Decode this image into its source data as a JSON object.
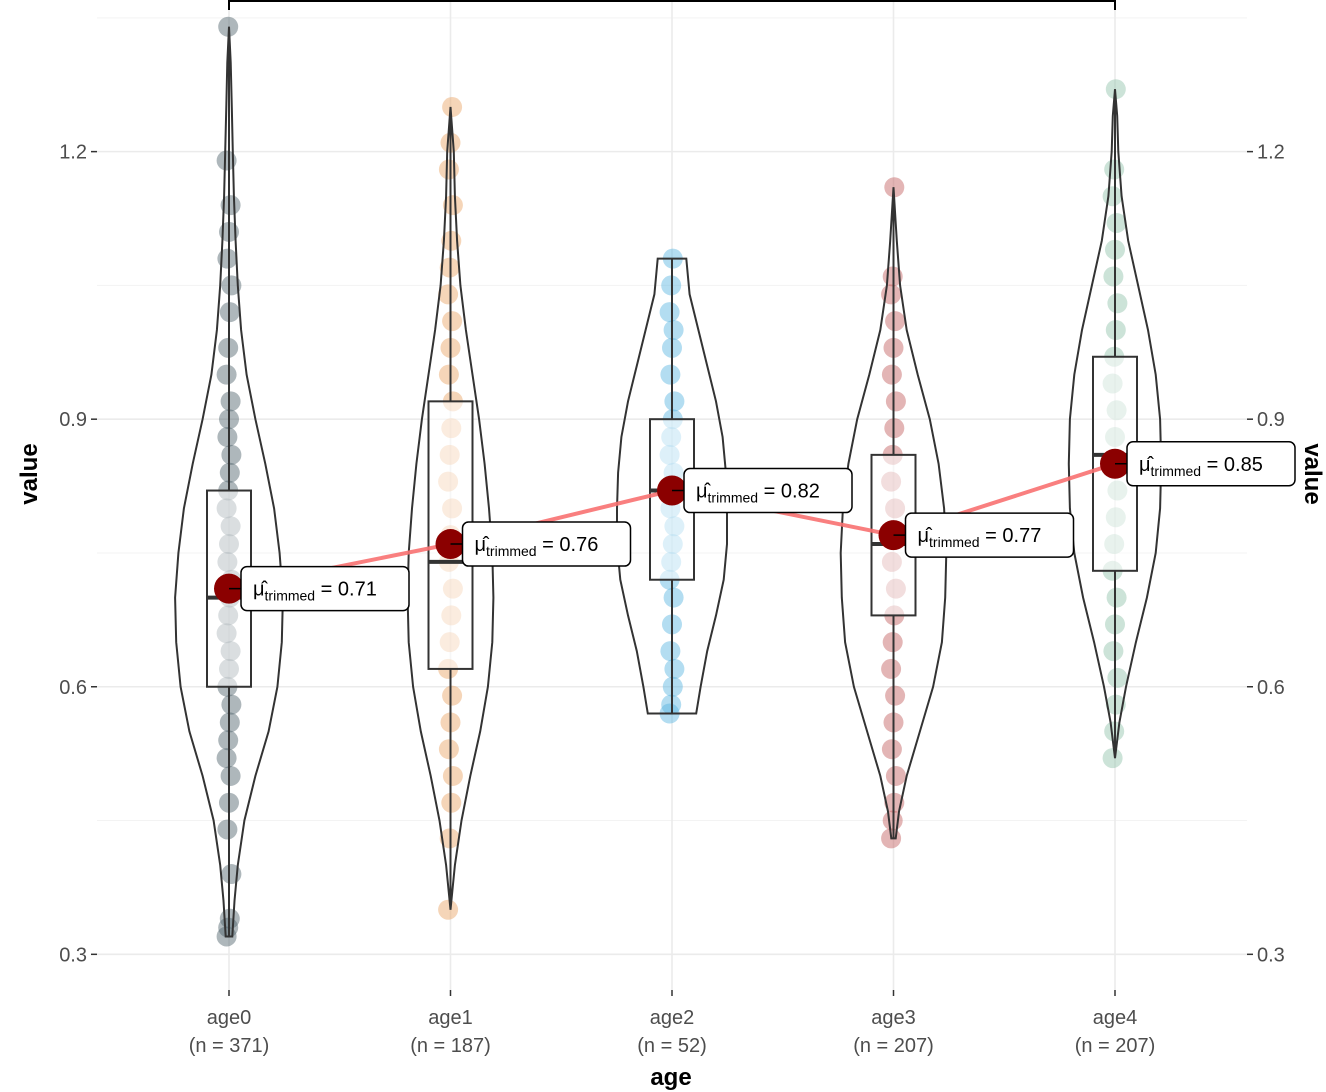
{
  "chart_data": {
    "type": "violin-box",
    "xlabel": "age",
    "ylabel": "value",
    "ylabel_right": "value",
    "ylim": [
      0.26,
      1.37
    ],
    "yticks": [
      0.3,
      0.6,
      0.9,
      1.2
    ],
    "ytick_labels": [
      "0.3",
      "0.6",
      "0.9",
      "1.2"
    ],
    "grid": true,
    "legend": "none",
    "mean_label_prefix": "μ̂",
    "mean_label_subscript": "trimmed",
    "significance_bracket": {
      "from": "age0",
      "to": "age4",
      "label": ""
    },
    "mean_line_color": "#f87171",
    "mean_point_color": "#8b0000",
    "groups": [
      {
        "name": "age0",
        "n_label": "(n = 371)",
        "color": "#4b5f69",
        "min": 0.32,
        "q1": 0.6,
        "median": 0.7,
        "q3": 0.82,
        "max": 1.34,
        "trimmed_mean": 0.71,
        "mean_label": "0.71",
        "density_y": [
          0.32,
          0.36,
          0.4,
          0.45,
          0.5,
          0.55,
          0.6,
          0.65,
          0.7,
          0.75,
          0.8,
          0.85,
          0.9,
          0.95,
          1.0,
          1.05,
          1.1,
          1.15,
          1.2,
          1.25,
          1.3,
          1.34
        ],
        "density_w": [
          0.03,
          0.05,
          0.08,
          0.14,
          0.24,
          0.36,
          0.44,
          0.48,
          0.49,
          0.46,
          0.41,
          0.33,
          0.24,
          0.16,
          0.11,
          0.08,
          0.06,
          0.045,
          0.035,
          0.025,
          0.015,
          0.0
        ],
        "points": [
          0.32,
          0.33,
          0.34,
          0.39,
          0.44,
          0.47,
          0.5,
          0.52,
          0.54,
          0.56,
          0.58,
          0.6,
          0.62,
          0.64,
          0.66,
          0.68,
          0.7,
          0.72,
          0.74,
          0.76,
          0.78,
          0.8,
          0.82,
          0.84,
          0.86,
          0.88,
          0.9,
          0.92,
          0.95,
          0.98,
          1.02,
          1.05,
          1.08,
          1.11,
          1.14,
          1.19,
          1.34
        ]
      },
      {
        "name": "age1",
        "n_label": "(n = 187)",
        "color": "#e8a261",
        "min": 0.35,
        "q1": 0.62,
        "median": 0.74,
        "q3": 0.92,
        "max": 1.25,
        "trimmed_mean": 0.76,
        "mean_label": "0.76",
        "density_y": [
          0.35,
          0.4,
          0.45,
          0.5,
          0.55,
          0.6,
          0.65,
          0.7,
          0.75,
          0.8,
          0.85,
          0.9,
          0.95,
          1.0,
          1.05,
          1.1,
          1.15,
          1.2,
          1.25
        ],
        "density_w": [
          0.0,
          0.04,
          0.1,
          0.18,
          0.27,
          0.34,
          0.38,
          0.39,
          0.38,
          0.35,
          0.31,
          0.26,
          0.2,
          0.14,
          0.09,
          0.06,
          0.04,
          0.03,
          0.0
        ],
        "points": [
          0.35,
          0.43,
          0.47,
          0.5,
          0.53,
          0.56,
          0.59,
          0.62,
          0.65,
          0.68,
          0.71,
          0.74,
          0.77,
          0.8,
          0.83,
          0.86,
          0.89,
          0.92,
          0.95,
          0.98,
          1.01,
          1.04,
          1.07,
          1.1,
          1.14,
          1.18,
          1.21,
          1.25
        ]
      },
      {
        "name": "age2",
        "n_label": "(n = 52)",
        "color": "#56b4e0",
        "min": 0.57,
        "q1": 0.72,
        "median": 0.82,
        "q3": 0.9,
        "max": 1.08,
        "trimmed_mean": 0.82,
        "mean_label": "0.82",
        "density_y": [
          0.57,
          0.6,
          0.64,
          0.68,
          0.72,
          0.76,
          0.8,
          0.84,
          0.88,
          0.92,
          0.96,
          1.0,
          1.04,
          1.08
        ],
        "density_w": [
          0.22,
          0.26,
          0.32,
          0.4,
          0.47,
          0.5,
          0.5,
          0.49,
          0.46,
          0.4,
          0.32,
          0.24,
          0.16,
          0.13
        ],
        "points": [
          0.57,
          0.58,
          0.6,
          0.62,
          0.64,
          0.67,
          0.7,
          0.72,
          0.74,
          0.76,
          0.78,
          0.8,
          0.82,
          0.84,
          0.86,
          0.88,
          0.9,
          0.92,
          0.95,
          0.98,
          1.0,
          1.02,
          1.05,
          1.08
        ]
      },
      {
        "name": "age3",
        "n_label": "(n = 207)",
        "color": "#c25b5b",
        "min": 0.43,
        "q1": 0.68,
        "median": 0.76,
        "q3": 0.86,
        "max": 1.16,
        "trimmed_mean": 0.77,
        "mean_label": "0.77",
        "density_y": [
          0.43,
          0.46,
          0.5,
          0.55,
          0.6,
          0.65,
          0.7,
          0.75,
          0.8,
          0.85,
          0.9,
          0.95,
          1.0,
          1.05,
          1.1,
          1.16
        ],
        "density_w": [
          0.02,
          0.05,
          0.12,
          0.24,
          0.36,
          0.44,
          0.47,
          0.48,
          0.46,
          0.41,
          0.33,
          0.22,
          0.12,
          0.06,
          0.03,
          0.0
        ],
        "points": [
          0.43,
          0.45,
          0.47,
          0.5,
          0.53,
          0.56,
          0.59,
          0.62,
          0.65,
          0.68,
          0.71,
          0.74,
          0.77,
          0.8,
          0.83,
          0.86,
          0.89,
          0.92,
          0.95,
          0.98,
          1.01,
          1.04,
          1.06,
          1.16
        ]
      },
      {
        "name": "age4",
        "n_label": "(n = 207)",
        "color": "#8fc0a9",
        "min": 0.52,
        "q1": 0.73,
        "median": 0.86,
        "q3": 0.97,
        "max": 1.27,
        "trimmed_mean": 0.85,
        "mean_label": "0.85",
        "density_y": [
          0.52,
          0.56,
          0.6,
          0.65,
          0.7,
          0.75,
          0.8,
          0.85,
          0.9,
          0.95,
          1.0,
          1.05,
          1.1,
          1.15,
          1.2,
          1.24,
          1.27
        ],
        "density_w": [
          0.0,
          0.04,
          0.1,
          0.19,
          0.29,
          0.37,
          0.41,
          0.42,
          0.41,
          0.37,
          0.3,
          0.21,
          0.12,
          0.06,
          0.03,
          0.02,
          0.0
        ],
        "points": [
          0.52,
          0.55,
          0.58,
          0.61,
          0.64,
          0.67,
          0.7,
          0.73,
          0.76,
          0.79,
          0.82,
          0.85,
          0.88,
          0.91,
          0.94,
          0.97,
          1.0,
          1.03,
          1.06,
          1.09,
          1.12,
          1.15,
          1.18,
          1.27
        ]
      }
    ]
  }
}
